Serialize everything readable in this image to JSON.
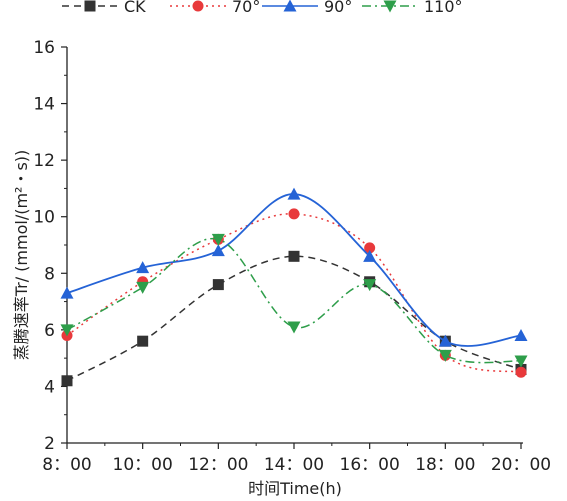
{
  "chart_data": {
    "type": "line",
    "xlabel": "时间Time(h)",
    "ylabel": "蒸腾速率Tr/ (mmol/(m²・s))",
    "x": [
      "8：00",
      "10：00",
      "12：00",
      "14：00",
      "16：00",
      "18：00",
      "20：00"
    ],
    "ylim": [
      2,
      16
    ],
    "yticks": [
      2,
      4,
      6,
      8,
      10,
      12,
      14,
      16
    ],
    "grid": false,
    "legend_position": "top",
    "series": [
      {
        "name": "CK",
        "values": [
          4.2,
          5.6,
          7.6,
          8.6,
          7.7,
          5.6,
          4.6
        ],
        "color": "#333333",
        "marker": "square",
        "dash": "dashed"
      },
      {
        "name": "70°",
        "values": [
          5.8,
          7.7,
          9.2,
          10.1,
          8.9,
          5.1,
          4.5
        ],
        "color": "#e8393b",
        "marker": "circle",
        "dash": "dotted"
      },
      {
        "name": "90°",
        "values": [
          7.3,
          8.2,
          8.8,
          10.8,
          8.6,
          5.6,
          5.8
        ],
        "color": "#2563d6",
        "marker": "triangle-up",
        "dash": "solid"
      },
      {
        "name": "110°",
        "values": [
          6.0,
          7.5,
          9.2,
          6.1,
          7.6,
          5.1,
          4.9
        ],
        "color": "#2e9e4a",
        "marker": "triangle-down",
        "dash": "dashdot"
      }
    ]
  }
}
